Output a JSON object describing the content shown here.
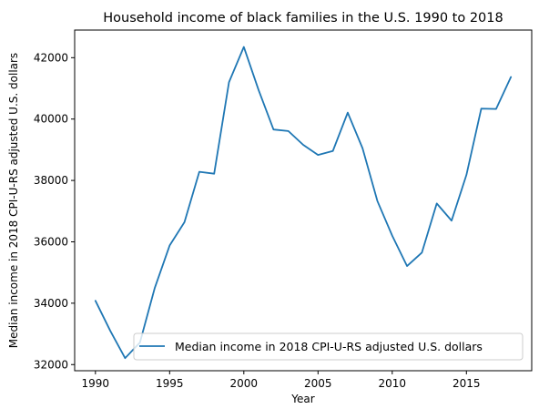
{
  "chart_data": {
    "type": "line",
    "title": "Household income of black families in the U.S. 1990 to 2018",
    "xlabel": "Year",
    "ylabel": "Median income in 2018 CPI-U-RS adjusted U.S. dollars",
    "xlim": [
      1988.6,
      2019.4
    ],
    "ylim": [
      31800,
      42900
    ],
    "xticks": [
      1990,
      1995,
      2000,
      2005,
      2010,
      2015
    ],
    "yticks": [
      32000,
      34000,
      36000,
      38000,
      40000,
      42000
    ],
    "grid": false,
    "legend_placement": "lower right",
    "series": [
      {
        "name": "Median income in 2018 CPI-U-RS adjusted U.S. dollars",
        "color": "#1f77b4",
        "x": [
          1990,
          1991,
          1992,
          1993,
          1994,
          1995,
          1996,
          1997,
          1998,
          1999,
          2000,
          2001,
          2002,
          2003,
          2004,
          2005,
          2006,
          2007,
          2008,
          2009,
          2010,
          2011,
          2012,
          2013,
          2014,
          2015,
          2016,
          2017,
          2018
        ],
        "values": [
          34080,
          33100,
          32210,
          32720,
          34500,
          35880,
          36640,
          38280,
          38220,
          41200,
          42350,
          40940,
          39660,
          39610,
          39160,
          38830,
          38960,
          40210,
          39050,
          37330,
          36200,
          35210,
          35650,
          37250,
          36690,
          38180,
          40340,
          40330,
          41370
        ]
      }
    ]
  }
}
